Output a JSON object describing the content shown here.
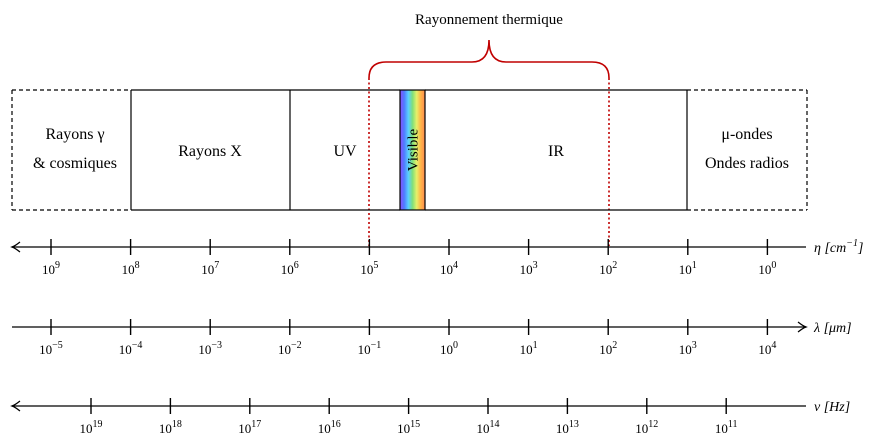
{
  "annotation": {
    "label": "Rayonnement thermique",
    "color": "#c00000"
  },
  "regions": [
    {
      "id": "gamma",
      "line1": "Rayons γ",
      "line2": "& cosmiques",
      "dashed": true
    },
    {
      "id": "x",
      "line1": "Rayons X",
      "line2": "",
      "dashed": false
    },
    {
      "id": "uv",
      "line1": "UV",
      "line2": "",
      "dashed": false
    },
    {
      "id": "visible",
      "line1": "Visible",
      "line2": "",
      "dashed": false,
      "rainbow": [
        "#8a4fff",
        "#4f7bff",
        "#5ad0ff",
        "#7fe07a",
        "#e6f06a",
        "#ffb347",
        "#ff8a4f"
      ]
    },
    {
      "id": "ir",
      "line1": "IR",
      "line2": "",
      "dashed": false
    },
    {
      "id": "micro",
      "line1": "μ-ondes",
      "line2": "Ondes radios",
      "dashed": true
    }
  ],
  "axes": [
    {
      "id": "wavenumber",
      "label": "η [cm",
      "label_sup": "−1",
      "label_end": "]",
      "arrow": "left",
      "ticks": [
        {
          "base": "10",
          "exp": "9"
        },
        {
          "base": "10",
          "exp": "8"
        },
        {
          "base": "10",
          "exp": "7"
        },
        {
          "base": "10",
          "exp": "6"
        },
        {
          "base": "10",
          "exp": "5"
        },
        {
          "base": "10",
          "exp": "4"
        },
        {
          "base": "10",
          "exp": "3"
        },
        {
          "base": "10",
          "exp": "2"
        },
        {
          "base": "10",
          "exp": "1"
        },
        {
          "base": "10",
          "exp": "0"
        }
      ]
    },
    {
      "id": "wavelength",
      "label": "λ [μm]",
      "label_sup": "",
      "label_end": "",
      "arrow": "right",
      "ticks": [
        {
          "base": "10",
          "exp": "−5"
        },
        {
          "base": "10",
          "exp": "−4"
        },
        {
          "base": "10",
          "exp": "−3"
        },
        {
          "base": "10",
          "exp": "−2"
        },
        {
          "base": "10",
          "exp": "−1"
        },
        {
          "base": "10",
          "exp": "0"
        },
        {
          "base": "10",
          "exp": "1"
        },
        {
          "base": "10",
          "exp": "2"
        },
        {
          "base": "10",
          "exp": "3"
        },
        {
          "base": "10",
          "exp": "4"
        }
      ]
    },
    {
      "id": "frequency",
      "label": "ν [Hz]",
      "label_sup": "",
      "label_end": "",
      "arrow": "left",
      "ticks": [
        {
          "base": "10",
          "exp": "19"
        },
        {
          "base": "10",
          "exp": "18"
        },
        {
          "base": "10",
          "exp": "17"
        },
        {
          "base": "10",
          "exp": "16"
        },
        {
          "base": "10",
          "exp": "15"
        },
        {
          "base": "10",
          "exp": "14"
        },
        {
          "base": "10",
          "exp": "13"
        },
        {
          "base": "10",
          "exp": "12"
        },
        {
          "base": "10",
          "exp": "11"
        }
      ]
    }
  ]
}
